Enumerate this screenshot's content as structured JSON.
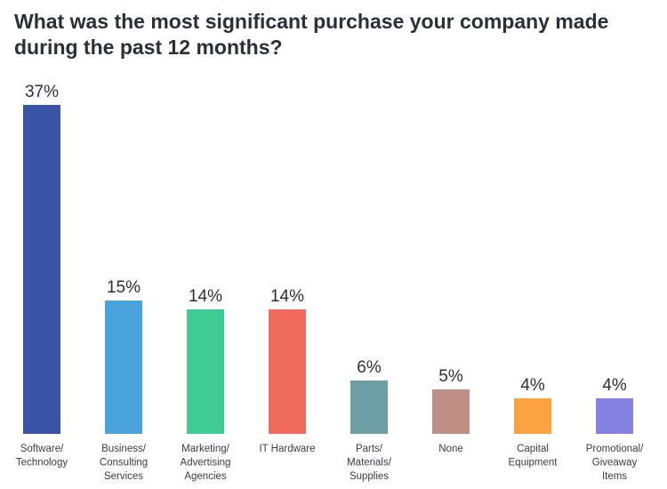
{
  "title": "What was the most significant purchase your company made during the past 12 months?",
  "chart_data": {
    "type": "bar",
    "title": "What was the most significant purchase your company made during the past 12 months?",
    "xlabel": "",
    "ylabel": "",
    "grid": false,
    "legend": "none",
    "ylim": [
      0,
      37
    ],
    "categories": [
      [
        "Software/",
        "Technology"
      ],
      [
        "Business/",
        "Consulting",
        "Services"
      ],
      [
        "Marketing/",
        "Advertising",
        "Agencies"
      ],
      [
        "IT Hardware"
      ],
      [
        "Parts/",
        "Materials/",
        "Supplies"
      ],
      [
        "None"
      ],
      [
        "Capital",
        "Equipment"
      ],
      [
        "Promotional/",
        "Giveaway",
        "Items"
      ]
    ],
    "values": [
      37,
      15,
      14,
      14,
      6,
      5,
      4,
      4
    ],
    "value_labels": [
      "37%",
      "15%",
      "14%",
      "14%",
      "6%",
      "5%",
      "4%",
      "4%"
    ],
    "colors": [
      "#3a53a4",
      "#4aa3da",
      "#3ecb94",
      "#f06b5c",
      "#6f9fa6",
      "#bf8f86",
      "#fba240",
      "#8683e0"
    ]
  }
}
